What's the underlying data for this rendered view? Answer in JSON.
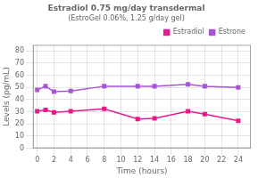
{
  "chart_data": {
    "type": "line",
    "title": "Estradiol 0.75 mg/day transdermal",
    "subtitle": "(EstroGel 0.06%, 1.25 g/day gel)",
    "x_label": "Time (hours)",
    "y_label": "Levels (pg/mL)",
    "x": [
      0,
      1,
      2,
      4,
      8,
      12,
      14,
      18,
      20,
      24
    ],
    "series": [
      {
        "name": "Estradiol",
        "color": "#e8198b",
        "marker": "square",
        "line_style": "solid",
        "values": [
          30.5,
          31.5,
          29.5,
          30.5,
          32.5,
          24.0,
          24.5,
          30.5,
          28.0,
          22.5
        ]
      },
      {
        "name": "Estrone",
        "color": "#a855d4",
        "marker": "square",
        "line_style": "solid",
        "values": [
          48.0,
          51.0,
          46.5,
          47.0,
          51.0,
          51.0,
          51.0,
          52.5,
          51.0,
          50.0
        ]
      }
    ],
    "xlim": [
      -0.5,
      25.5
    ],
    "xticks": [
      0,
      2,
      4,
      6,
      8,
      10,
      12,
      14,
      16,
      18,
      20,
      22,
      24
    ],
    "ylim": [
      0,
      85
    ],
    "yticks": [
      0,
      10,
      20,
      30,
      40,
      50,
      60,
      70,
      80
    ],
    "grid": true,
    "legend": "upper right"
  }
}
